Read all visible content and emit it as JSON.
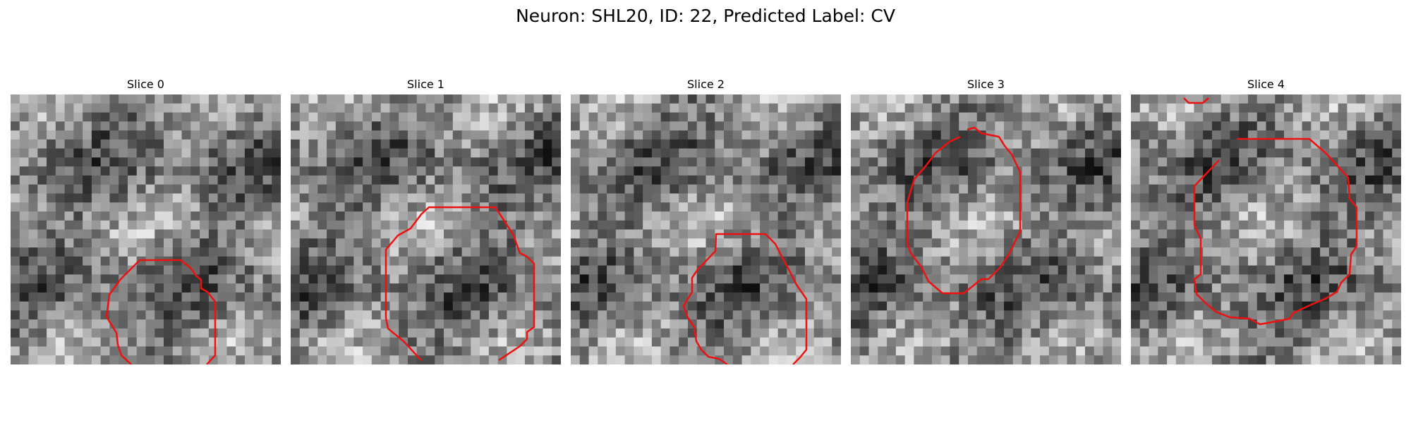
{
  "figure": {
    "title": "Neuron: SHL20, ID: 22, Predicted Label: CV"
  },
  "colors": {
    "contour": "#ee1111",
    "background": "#ffffff"
  },
  "slices": [
    {
      "title": "Slice 0"
    },
    {
      "title": "Slice 1"
    },
    {
      "title": "Slice 2"
    },
    {
      "title": "Slice 3"
    },
    {
      "title": "Slice 4"
    }
  ]
}
